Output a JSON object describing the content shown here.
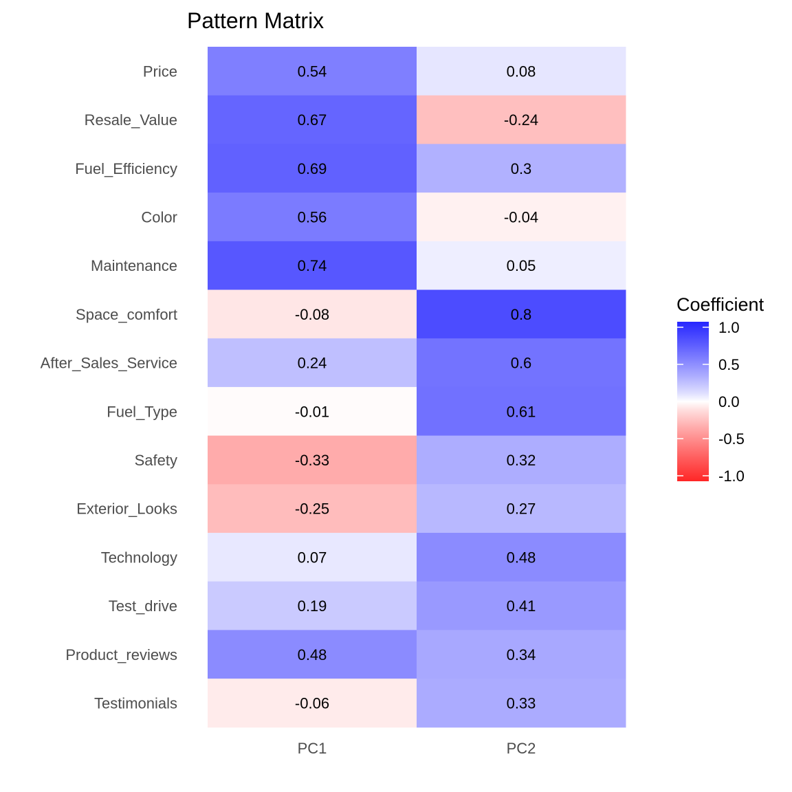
{
  "chart_data": {
    "type": "heatmap",
    "title": "Pattern Matrix",
    "xlabel": "",
    "ylabel": "",
    "columns": [
      "PC1",
      "PC2"
    ],
    "rows": [
      "Price",
      "Resale_Value",
      "Fuel_Efficiency",
      "Color",
      "Maintenance",
      "Space_comfort",
      "After_Sales_Service",
      "Fuel_Type",
      "Safety",
      "Exterior_Looks",
      "Technology",
      "Test_drive",
      "Product_reviews",
      "Testimonials"
    ],
    "values": [
      [
        0.54,
        0.08
      ],
      [
        0.67,
        -0.24
      ],
      [
        0.69,
        0.3
      ],
      [
        0.56,
        -0.04
      ],
      [
        0.74,
        0.05
      ],
      [
        -0.08,
        0.8
      ],
      [
        0.24,
        0.6
      ],
      [
        -0.01,
        0.61
      ],
      [
        -0.33,
        0.32
      ],
      [
        -0.25,
        0.27
      ],
      [
        0.07,
        0.48
      ],
      [
        0.19,
        0.41
      ],
      [
        0.48,
        0.34
      ],
      [
        -0.06,
        0.33
      ]
    ],
    "labels": [
      [
        "0.54",
        "0.08"
      ],
      [
        "0.67",
        "-0.24"
      ],
      [
        "0.69",
        "0.3"
      ],
      [
        "0.56",
        "-0.04"
      ],
      [
        "0.74",
        "0.05"
      ],
      [
        "-0.08",
        "0.8"
      ],
      [
        "0.24",
        "0.6"
      ],
      [
        "-0.01",
        "0.61"
      ],
      [
        "-0.33",
        "0.32"
      ],
      [
        "-0.25",
        "0.27"
      ],
      [
        "0.07",
        "0.48"
      ],
      [
        "0.19",
        "0.41"
      ],
      [
        "0.48",
        "0.34"
      ],
      [
        "-0.06",
        "0.33"
      ]
    ],
    "color_scale": {
      "low_color": "#ff0000",
      "mid_color": "#ffffff",
      "high_color": "#0000ff",
      "limits": [
        -1,
        1
      ],
      "midpoint": 0
    },
    "legend": {
      "title": "Coefficient",
      "ticks": [
        1.0,
        0.5,
        0.0,
        -0.5,
        -1.0
      ],
      "tick_labels": [
        "1.0",
        "0.5",
        "0.0",
        "-0.5",
        "-1.0"
      ],
      "placement": "right"
    },
    "grid": false
  }
}
